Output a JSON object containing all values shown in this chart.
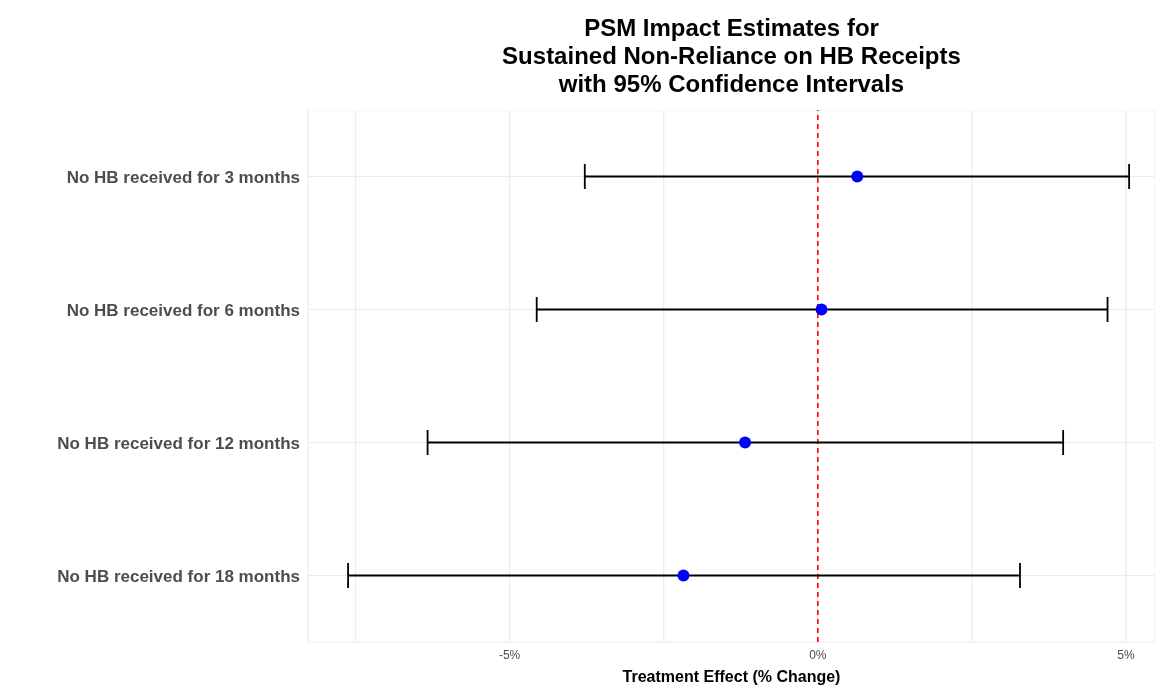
{
  "chart_data": {
    "type": "scatter",
    "orientation": "horizontal",
    "title": "PSM Impact Estimates for\nSustained Non-Reliance on HB Receipts\nwith 95% Confidence Intervals",
    "xlabel": "Treatment Effect (% Change)",
    "categories": [
      "No HB received for 3 months",
      "No HB received for 6 months",
      "No HB received for 12 months",
      "No HB received for 18 months"
    ],
    "values": [
      0.64,
      0.06,
      -1.18,
      -2.18
    ],
    "errors": [
      [
        -3.78,
        5.05
      ],
      [
        -4.56,
        4.7
      ],
      [
        -6.33,
        3.98
      ],
      [
        -7.62,
        3.28
      ]
    ],
    "color": "#0000ff",
    "marker": "circle",
    "xlim": [
      -8.27,
      5.47
    ],
    "xticks": [
      {
        "value": -7.5,
        "label": null
      },
      {
        "value": -5,
        "label": "-5%"
      },
      {
        "value": -2.5,
        "label": null
      },
      {
        "value": 0,
        "label": "0%"
      },
      {
        "value": 2.5,
        "label": null
      },
      {
        "value": 5,
        "label": "5%"
      }
    ],
    "ref_lines": [
      {
        "axis": "x",
        "value": 0,
        "color": "#ff0000",
        "line_style": "dashed"
      }
    ],
    "grid": true
  }
}
